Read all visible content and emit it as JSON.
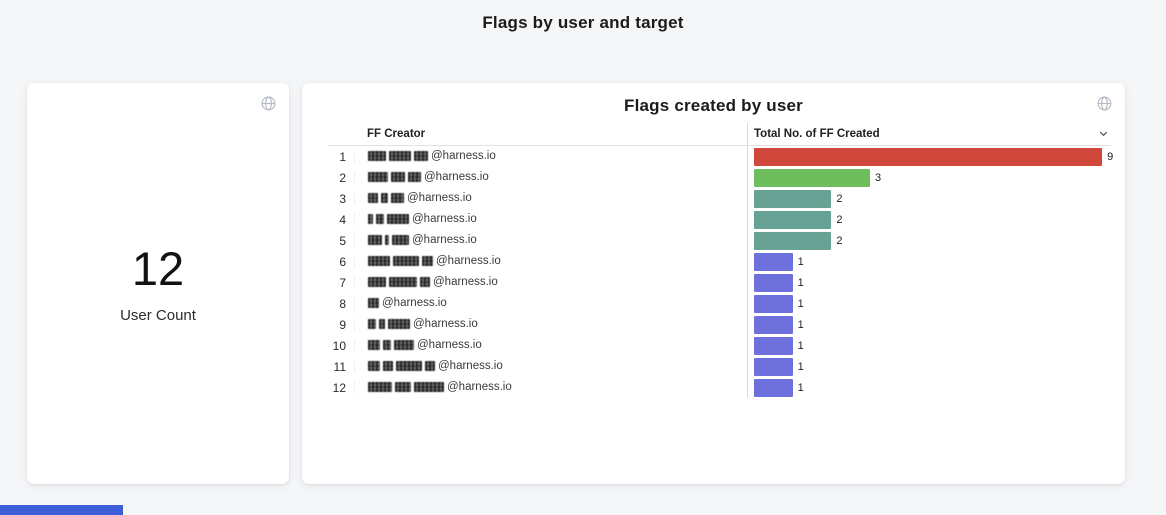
{
  "page": {
    "title": "Flags by user and target"
  },
  "user_count_card": {
    "value": "12",
    "label": "User Count",
    "globe_icon": "globe"
  },
  "flags_card": {
    "title": "Flags created by user",
    "globe_icon": "globe",
    "columns": {
      "creator": "FF Creator",
      "total": "Total No. of FF Created"
    },
    "max_value": 9,
    "rows": [
      {
        "index": "1",
        "email": "@harness.io",
        "value": 9,
        "color": "#d0483b",
        "redact": [
          18,
          22,
          14
        ]
      },
      {
        "index": "2",
        "email": "@harness.io",
        "value": 3,
        "color": "#6fbe5d",
        "redact": [
          20,
          14,
          13
        ]
      },
      {
        "index": "3",
        "email": "@harness.io",
        "value": 2,
        "color": "#67a294",
        "redact": [
          10,
          7,
          13
        ]
      },
      {
        "index": "4",
        "email": "@harness.io",
        "value": 2,
        "color": "#67a294",
        "redact": [
          5,
          8,
          22
        ]
      },
      {
        "index": "5",
        "email": "@harness.io",
        "value": 2,
        "color": "#67a294",
        "redact": [
          14,
          4,
          17
        ]
      },
      {
        "index": "6",
        "email": "@harness.io",
        "value": 1,
        "color": "#6e71db",
        "redact": [
          22,
          26,
          11
        ]
      },
      {
        "index": "7",
        "email": "@harness.io",
        "value": 1,
        "color": "#6e71db",
        "redact": [
          18,
          28,
          10
        ]
      },
      {
        "index": "8",
        "email": "@harness.io",
        "value": 1,
        "color": "#6e71db",
        "redact": [
          11
        ]
      },
      {
        "index": "9",
        "email": "@harness.io",
        "value": 1,
        "color": "#6e71db",
        "redact": [
          8,
          6,
          22
        ]
      },
      {
        "index": "10",
        "email": "@harness.io",
        "value": 1,
        "color": "#6e71db",
        "redact": [
          12,
          8,
          20
        ]
      },
      {
        "index": "11",
        "email": "@harness.io",
        "value": 1,
        "color": "#6e71db",
        "redact": [
          12,
          10,
          26,
          10
        ]
      },
      {
        "index": "12",
        "email": "@harness.io",
        "value": 1,
        "color": "#6e71db",
        "redact": [
          24,
          16,
          30
        ]
      }
    ]
  },
  "footer": {
    "blue_strip_color": "#3c5ed8"
  },
  "chart_data": [
    {
      "type": "table",
      "title": "User Count",
      "values": [
        12
      ]
    },
    {
      "type": "bar",
      "orientation": "horizontal",
      "title": "Flags created by user",
      "xlabel": "Total No. of FF Created",
      "ylabel": "FF Creator",
      "xlim": [
        0,
        9
      ],
      "categories": [
        "[redacted]@harness.io",
        "[redacted]@harness.io",
        "[redacted]@harness.io",
        "[redacted]@harness.io",
        "[redacted]@harness.io",
        "[redacted]@harness.io",
        "[redacted]@harness.io",
        "[redacted]@harness.io",
        "[redacted]@harness.io",
        "[redacted]@harness.io",
        "[redacted]@harness.io",
        "[redacted]@harness.io"
      ],
      "values": [
        9,
        3,
        2,
        2,
        2,
        1,
        1,
        1,
        1,
        1,
        1,
        1
      ],
      "colors": [
        "#d0483b",
        "#6fbe5d",
        "#67a294",
        "#67a294",
        "#67a294",
        "#6e71db",
        "#6e71db",
        "#6e71db",
        "#6e71db",
        "#6e71db",
        "#6e71db",
        "#6e71db"
      ],
      "legend": "none",
      "grid": "off"
    }
  ]
}
